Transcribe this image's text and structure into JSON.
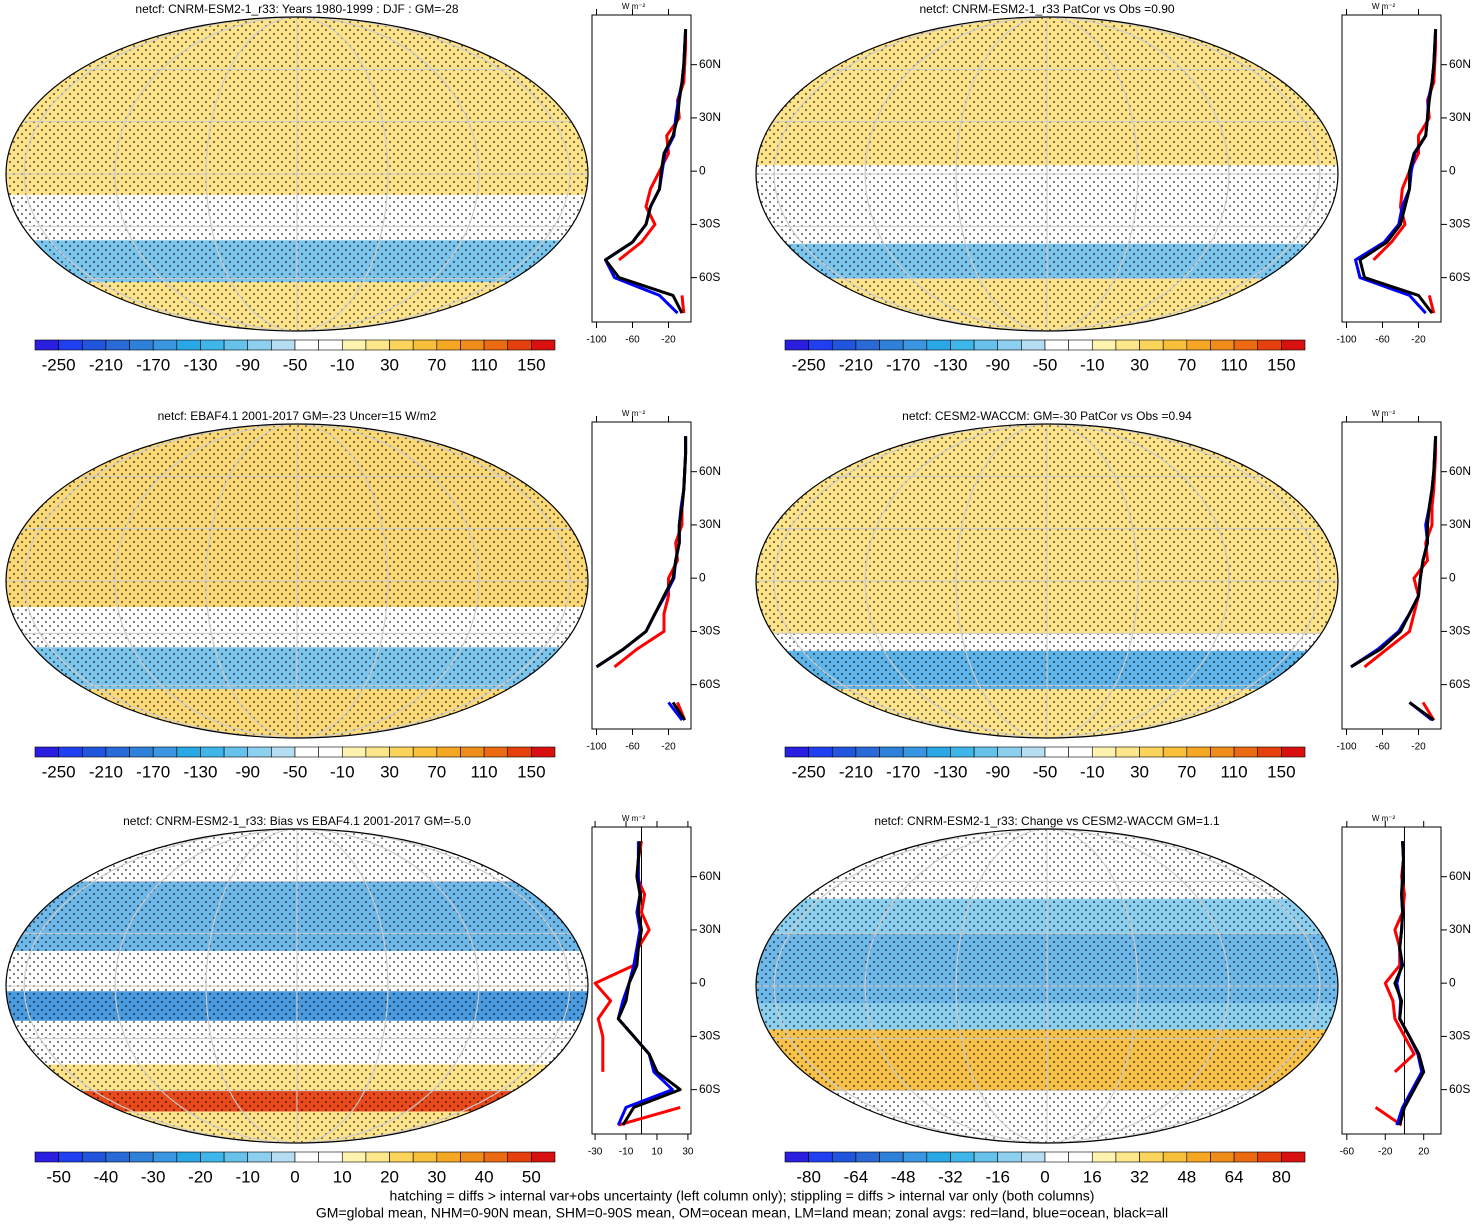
{
  "panels": [
    {
      "title": "netcf: CNRM-ESM2-1_r33: Years 1980-1999 : DJF : GM=-28",
      "colorbar_labels": [
        -250,
        -210,
        -170,
        -130,
        -90,
        -50,
        -10,
        30,
        70,
        110,
        150
      ],
      "zonal": {
        "units": "W m⁻²",
        "xlim": [
          -105,
          5
        ],
        "xticks": [
          -100,
          -60,
          -20
        ],
        "ylim": [
          -85,
          88
        ],
        "yticks": [
          {
            "value": 60,
            "label": "60N"
          },
          {
            "value": 30,
            "label": "30N"
          },
          0,
          {
            "value": -30,
            "label": "30S"
          },
          {
            "value": -60,
            "label": "60S"
          }
        ],
        "y": [
          -80,
          -70,
          -60,
          -50,
          -40,
          -30,
          -20,
          -10,
          0,
          10,
          20,
          30,
          40,
          50,
          60,
          70,
          80
        ],
        "series": [
          {
            "color": "#ff0000",
            "values": [
              -3,
              -5,
              null,
              -75,
              -50,
              -35,
              -45,
              -40,
              -30,
              -20,
              -22,
              -8,
              -10,
              -3,
              -2,
              -1,
              -1
            ]
          },
          {
            "color": "#0000ff",
            "values": [
              -10,
              -30,
              -80,
              -90,
              -60,
              -45,
              -40,
              -30,
              -27,
              -24,
              -14,
              -12,
              -9,
              -5,
              -3,
              -2,
              -1
            ]
          },
          {
            "color": "#000000",
            "values": [
              -5,
              -15,
              -75,
              -90,
              -60,
              -45,
              -40,
              -30,
              -28,
              -25,
              -15,
              -10,
              -8,
              -5,
              -3,
              -2,
              -1
            ]
          }
        ]
      }
    },
    {
      "title": "netcf: CNRM-ESM2-1_r33 PatCor vs Obs =0.90",
      "colorbar_labels": [
        -250,
        -210,
        -170,
        -130,
        -90,
        -50,
        -10,
        30,
        70,
        110,
        150
      ],
      "zonal": {
        "units": "W m⁻²",
        "xlim": [
          -105,
          5
        ],
        "xticks": [
          -100,
          -60,
          -20
        ],
        "ylim": [
          -85,
          88
        ],
        "yticks": [
          {
            "value": 60,
            "label": "60N"
          },
          {
            "value": 30,
            "label": "30N"
          },
          0,
          {
            "value": -30,
            "label": "30S"
          },
          {
            "value": -60,
            "label": "60S"
          }
        ],
        "y": [
          -80,
          -70,
          -60,
          -50,
          -40,
          -30,
          -20,
          -10,
          0,
          10,
          20,
          30,
          40,
          50,
          60,
          70,
          80
        ],
        "series": [
          {
            "color": "#ff0000",
            "values": [
              -3,
              -8,
              null,
              -70,
              -50,
              -35,
              -40,
              -38,
              -30,
              -20,
              -20,
              -8,
              -10,
              -3,
              -2,
              -1,
              -1
            ]
          },
          {
            "color": "#0000ff",
            "values": [
              -12,
              -30,
              -85,
              -90,
              -58,
              -42,
              -38,
              -30,
              -28,
              -24,
              -12,
              -10,
              -9,
              -5,
              -3,
              -2,
              -1
            ]
          },
          {
            "color": "#000000",
            "values": [
              -5,
              -20,
              -80,
              -85,
              -55,
              -40,
              -35,
              -30,
              -30,
              -25,
              -12,
              -10,
              -8,
              -5,
              -3,
              -2,
              -1
            ]
          }
        ]
      }
    },
    {
      "title": "netcf: EBAF4.1 2001-2017 GM=-23 Uncer=15 W/m2",
      "colorbar_labels": [
        -250,
        -210,
        -170,
        -130,
        -90,
        -50,
        -10,
        30,
        70,
        110,
        150
      ],
      "zonal": {
        "units": "W m⁻²",
        "xlim": [
          -105,
          5
        ],
        "xticks": [
          -100,
          -60,
          -20
        ],
        "ylim": [
          -85,
          88
        ],
        "yticks": [
          {
            "value": 60,
            "label": "60N"
          },
          {
            "value": 30,
            "label": "30N"
          },
          0,
          {
            "value": -30,
            "label": "30S"
          },
          {
            "value": -60,
            "label": "60S"
          }
        ],
        "y": [
          -80,
          -70,
          -60,
          -50,
          -40,
          -30,
          -20,
          -10,
          0,
          10,
          20,
          30,
          40,
          50,
          60,
          70,
          80
        ],
        "series": [
          {
            "color": "#ff0000",
            "values": [
              -2,
              -10,
              null,
              -80,
              -55,
              -25,
              -25,
              -20,
              -20,
              -10,
              -12,
              -5,
              -5,
              -3,
              -2,
              -1,
              -1
            ]
          },
          {
            "color": "#0000ff",
            "values": [
              -5,
              -20,
              null,
              -100,
              -70,
              -45,
              -35,
              -24,
              -14,
              -12,
              -8,
              -8,
              -6,
              -3,
              -2,
              -1,
              -1
            ]
          },
          {
            "color": "#000000",
            "values": [
              -2,
              -15,
              null,
              -100,
              -70,
              -45,
              -35,
              -25,
              -15,
              -12,
              -8,
              -8,
              -5,
              -3,
              -2,
              -1,
              -1
            ]
          }
        ]
      }
    },
    {
      "title": "netcf: CESM2-WACCM: GM=-30 PatCor vs Obs =0.94",
      "colorbar_labels": [
        -250,
        -210,
        -170,
        -130,
        -90,
        -50,
        -10,
        30,
        70,
        110,
        150
      ],
      "zonal": {
        "units": "W m⁻²",
        "xlim": [
          -105,
          5
        ],
        "xticks": [
          -100,
          -60,
          -20
        ],
        "ylim": [
          -85,
          88
        ],
        "yticks": [
          {
            "value": 60,
            "label": "60N"
          },
          {
            "value": 30,
            "label": "30N"
          },
          0,
          {
            "value": -30,
            "label": "30S"
          },
          {
            "value": -60,
            "label": "60S"
          }
        ],
        "y": [
          -80,
          -70,
          -60,
          -50,
          -40,
          -30,
          -20,
          -10,
          0,
          10,
          20,
          30,
          40,
          50,
          60,
          70,
          80
        ],
        "series": [
          {
            "color": "#ff0000",
            "values": [
              -3,
              -15,
              null,
              -80,
              -55,
              -30,
              -25,
              -20,
              -25,
              -10,
              -12,
              -5,
              -5,
              -3,
              -2,
              -1,
              -1
            ]
          },
          {
            "color": "#0000ff",
            "values": [
              -5,
              -30,
              null,
              -95,
              -65,
              -42,
              -30,
              -20,
              -18,
              -15,
              -10,
              -12,
              -8,
              -5,
              -3,
              -2,
              -1
            ]
          },
          {
            "color": "#000000",
            "values": [
              -3,
              -30,
              null,
              -95,
              -62,
              -40,
              -30,
              -20,
              -18,
              -15,
              -10,
              -10,
              -8,
              -5,
              -3,
              -2,
              -1
            ]
          }
        ]
      }
    },
    {
      "title": "netcf: CNRM-ESM2-1_r33: Bias vs EBAF4.1 2001-2017 GM=-5.0",
      "colorbar_labels": [
        -50,
        -40,
        -30,
        -20,
        -10,
        0,
        10,
        20,
        30,
        40,
        50
      ],
      "zonal": {
        "units": "W m⁻²",
        "xlim": [
          -32,
          32
        ],
        "xticks": [
          -30,
          -10,
          10,
          30
        ],
        "ylim": [
          -85,
          88
        ],
        "yticks": [
          {
            "value": 60,
            "label": "60N"
          },
          {
            "value": 30,
            "label": "30N"
          },
          0,
          {
            "value": -30,
            "label": "30S"
          },
          {
            "value": -60,
            "label": "60S"
          }
        ],
        "y": [
          -80,
          -70,
          -60,
          -50,
          -40,
          -30,
          -20,
          -10,
          0,
          10,
          20,
          30,
          40,
          50,
          60,
          70,
          80
        ],
        "series": [
          {
            "color": "#ff0000",
            "values": [
              -15,
              25,
              null,
              -25,
              -25,
              -25,
              -28,
              -20,
              -30,
              -5,
              -2,
              5,
              0,
              2,
              -3,
              -2,
              0
            ]
          },
          {
            "color": "#0000ff",
            "values": [
              -15,
              -10,
              20,
              8,
              5,
              -5,
              -15,
              -12,
              -8,
              -5,
              -3,
              -1,
              -3,
              -1,
              -2,
              -2,
              -2
            ]
          },
          {
            "color": "#000000",
            "values": [
              -12,
              -5,
              25,
              10,
              5,
              -5,
              -15,
              -10,
              -8,
              -3,
              -2,
              0,
              -2,
              -1,
              -3,
              -2,
              -1
            ]
          }
        ]
      }
    },
    {
      "title": "netcf: CNRM-ESM2-1_r33: Change vs CESM2-WACCM GM=1.1",
      "colorbar_labels": [
        -80,
        -64,
        -48,
        -32,
        -16,
        0,
        16,
        32,
        48,
        64,
        80
      ],
      "zonal": {
        "units": "W m⁻²",
        "xlim": [
          -65,
          38
        ],
        "xticks": [
          -60,
          -20,
          20
        ],
        "ylim": [
          -85,
          88
        ],
        "yticks": [
          {
            "value": 60,
            "label": "60N"
          },
          {
            "value": 30,
            "label": "30N"
          },
          0,
          {
            "value": -30,
            "label": "30S"
          },
          {
            "value": -60,
            "label": "60S"
          }
        ],
        "y": [
          -80,
          -70,
          -60,
          -50,
          -40,
          -30,
          -20,
          -10,
          0,
          10,
          20,
          30,
          40,
          50,
          60,
          70,
          80
        ],
        "series": [
          {
            "color": "#ff0000",
            "values": [
              -3,
              -30,
              null,
              -10,
              10,
              0,
              -10,
              -12,
              -20,
              -5,
              -5,
              -10,
              -2,
              0,
              -3,
              -1,
              -2
            ]
          },
          {
            "color": "#0000ff",
            "values": [
              -8,
              -2,
              8,
              18,
              14,
              5,
              -5,
              -4,
              -8,
              -3,
              -5,
              -3,
              -2,
              -3,
              -2,
              -1,
              -2
            ]
          },
          {
            "color": "#000000",
            "values": [
              -5,
              0,
              10,
              20,
              15,
              5,
              -5,
              -3,
              -10,
              -2,
              -5,
              -3,
              -2,
              -3,
              -2,
              -1,
              -2
            ]
          }
        ]
      }
    }
  ],
  "footer": [
    "hatching = diffs > internal var+obs uncertainty (left column only); stippling = diffs > internal var only (both columns)",
    "GM=global mean, NHM=0-90N mean, SHM=0-90S mean, OM=ocean mean, LM=land mean; zonal avgs: red=land, blue=ocean, black=all"
  ]
}
